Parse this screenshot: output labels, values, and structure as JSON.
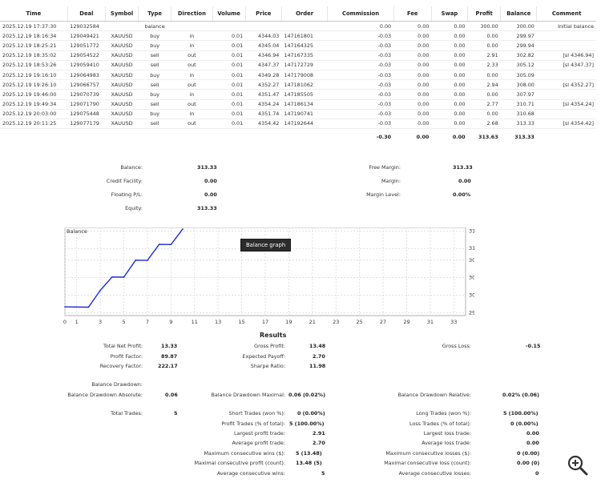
{
  "deals_table": {
    "headers": [
      "Time",
      "Deal",
      "Symbol",
      "Type",
      "Direction",
      "Volume",
      "Price",
      "Order",
      "Commission",
      "Fee",
      "Swap",
      "Profit",
      "Balance",
      "Comment"
    ],
    "rows": [
      [
        "2025.12.19 17:37:30",
        "129032584",
        "",
        "balance",
        "",
        "",
        "",
        "",
        "0.00",
        "0.00",
        "0.00",
        "300.00",
        "300.00",
        "Initial balance"
      ],
      [
        "2025.12.19 18:16:34",
        "129049421",
        "XAUUSD",
        "buy",
        "in",
        "0.01",
        "4344.03",
        "147161801",
        "-0.03",
        "0.00",
        "0.00",
        "0.00",
        "299.97",
        ""
      ],
      [
        "2025.12.19 18:25:21",
        "129051772",
        "XAUUSD",
        "buy",
        "in",
        "0.01",
        "4345.04",
        "147164325",
        "-0.03",
        "0.00",
        "0.00",
        "0.00",
        "299.94",
        ""
      ],
      [
        "2025.12.19 18:35:02",
        "129054522",
        "XAUUSD",
        "sell",
        "out",
        "0.01",
        "4346.94",
        "147167335",
        "-0.03",
        "0.00",
        "0.00",
        "2.91",
        "302.82",
        "[sl 4346.94]"
      ],
      [
        "2025.12.19 18:53:26",
        "129059410",
        "XAUUSD",
        "sell",
        "out",
        "0.01",
        "4347.37",
        "147172729",
        "-0.03",
        "0.00",
        "0.00",
        "2.33",
        "305.12",
        "[sl 4347.37]"
      ],
      [
        "2025.12.19 19:16:10",
        "129064983",
        "XAUUSD",
        "buy",
        "in",
        "0.01",
        "4349.28",
        "147179008",
        "-0.03",
        "0.00",
        "0.00",
        "0.00",
        "305.09",
        ""
      ],
      [
        "2025.12.19 19:26:10",
        "129066757",
        "XAUUSD",
        "sell",
        "out",
        "0.01",
        "4352.27",
        "147181062",
        "-0.03",
        "0.00",
        "0.00",
        "2.94",
        "308.00",
        "[sl 4352.27]"
      ],
      [
        "2025.12.19 19:46:00",
        "129070739",
        "XAUUSD",
        "buy",
        "in",
        "0.01",
        "4351.47",
        "147185505",
        "-0.03",
        "0.00",
        "0.00",
        "0.00",
        "307.97",
        ""
      ],
      [
        "2025.12.19 19:49:34",
        "129071790",
        "XAUUSD",
        "sell",
        "out",
        "0.01",
        "4354.24",
        "147186134",
        "-0.03",
        "0.00",
        "0.00",
        "2.77",
        "310.71",
        "[sl 4354.24]"
      ],
      [
        "2025.12.19 20:03:00",
        "129075448",
        "XAUUSD",
        "buy",
        "in",
        "0.01",
        "4351.74",
        "147190741",
        "-0.03",
        "0.00",
        "0.00",
        "0.00",
        "310.68",
        ""
      ],
      [
        "2025.12.19 20:11:25",
        "129077179",
        "XAUUSD",
        "sell",
        "out",
        "0.01",
        "4354.42",
        "147192644",
        "-0.03",
        "0.00",
        "0.00",
        "2.68",
        "313.33",
        "[sl 4354.42]"
      ]
    ],
    "totals": {
      "commission": "-0.30",
      "fee": "0.00",
      "swap": "0.00",
      "profit": "313.63",
      "balance": "313.33"
    }
  },
  "account_summary": {
    "balance": {
      "label": "Balance:",
      "value": "313.33"
    },
    "credit_facility": {
      "label": "Credit Facility:",
      "value": "0.00"
    },
    "floating_pl": {
      "label": "Floating P/L:",
      "value": "0.00"
    },
    "equity": {
      "label": "Equity:",
      "value": "313.33"
    },
    "free_margin": {
      "label": "Free Margin:",
      "value": "313.33"
    },
    "margin": {
      "label": "Margin:",
      "value": "0.00"
    },
    "margin_level": {
      "label": "Margin Level:",
      "value": "0.00%"
    }
  },
  "chart_data": {
    "type": "line",
    "title": "",
    "series_label": "Balance",
    "x": [
      0,
      1,
      2,
      3,
      4,
      5,
      6,
      7,
      8,
      9,
      10
    ],
    "values": [
      300.0,
      299.97,
      299.94,
      302.82,
      305.12,
      305.09,
      308.0,
      307.97,
      310.71,
      310.68,
      313.33
    ],
    "x_ticks": [
      "0",
      "1",
      "3",
      "5",
      "7",
      "9",
      "11",
      "13",
      "15",
      "17",
      "19",
      "21",
      "23",
      "25",
      "27",
      "29",
      "31",
      "33"
    ],
    "x_tick_values": [
      0,
      1,
      3,
      5,
      7,
      9,
      11,
      13,
      15,
      17,
      19,
      21,
      23,
      25,
      27,
      29,
      31,
      33
    ],
    "y_ticks": [
      "299",
      "302",
      "305",
      "308",
      "310",
      "313"
    ],
    "y_tick_values": [
      299,
      302,
      305,
      308,
      310,
      313
    ],
    "xlim": [
      0,
      34
    ],
    "ylim": [
      298.5,
      313.6
    ],
    "grid": true,
    "line_color": "#1c2bd4"
  },
  "balance_graph_button": "Balance graph",
  "results": {
    "title": "Results",
    "total_net_profit": {
      "label": "Total Net Profit:",
      "value": "13.33"
    },
    "gross_profit": {
      "label": "Gross Profit:",
      "value": "13.48"
    },
    "gross_loss": {
      "label": "Gross Loss:",
      "value": "-0.15"
    },
    "profit_factor": {
      "label": "Profit Factor:",
      "value": "89.87"
    },
    "expected_payoff": {
      "label": "Expected Payoff:",
      "value": "2.70"
    },
    "recovery_factor": {
      "label": "Recovery Factor:",
      "value": "222.17"
    },
    "sharpe_ratio": {
      "label": "Sharpe Ratio:",
      "value": "11.98"
    },
    "balance_drawdown": {
      "label": "Balance Drawdown:",
      "value": ""
    },
    "bd_absolute": {
      "label": "Balance Drawdown Absolute:",
      "value": "0.06"
    },
    "bd_maximal": {
      "label": "Balance Drawdown Maximal:",
      "value": "0.06 (0.02%)"
    },
    "bd_relative": {
      "label": "Balance Drawdown Relative:",
      "value": "0.02% (0.06)"
    },
    "total_trades": {
      "label": "Total Trades:",
      "value": "5"
    },
    "short_trades": {
      "label": "Short Trades (won %):",
      "value": "0 (0.00%)"
    },
    "long_trades": {
      "label": "Long Trades (won %):",
      "value": "5 (100.00%)"
    },
    "profit_trades": {
      "label": "Profit Trades (% of total):",
      "value": "5 (100.00%)"
    },
    "loss_trades": {
      "label": "Loss Trades (% of total):",
      "value": "0 (0.00%)"
    },
    "largest_profit": {
      "label": "Largest profit trade:",
      "value": "2.91"
    },
    "largest_loss": {
      "label": "Largest loss trade:",
      "value": "0.00"
    },
    "average_profit": {
      "label": "Average profit trade:",
      "value": "2.70"
    },
    "average_loss": {
      "label": "Average loss trade:",
      "value": "0.00"
    },
    "max_consec_wins": {
      "label": "Maximum consecutive wins ($):",
      "value": "5 (13.48)"
    },
    "max_consec_losses": {
      "label": "Maximum consecutive losses ($):",
      "value": "0 (0.00)"
    },
    "maximal_consec_profit": {
      "label": "Maximal consecutive profit (count):",
      "value": "13.48 (5)"
    },
    "maximal_consec_loss": {
      "label": "Maximal consecutive loss (count):",
      "value": "0.00 (0)"
    },
    "avg_consec_wins": {
      "label": "Average consecutive wins:",
      "value": "5"
    },
    "avg_consec_losses": {
      "label": "Average consecutive losses:",
      "value": "0"
    }
  },
  "icons": {
    "zoom": "zoom-in-icon"
  }
}
